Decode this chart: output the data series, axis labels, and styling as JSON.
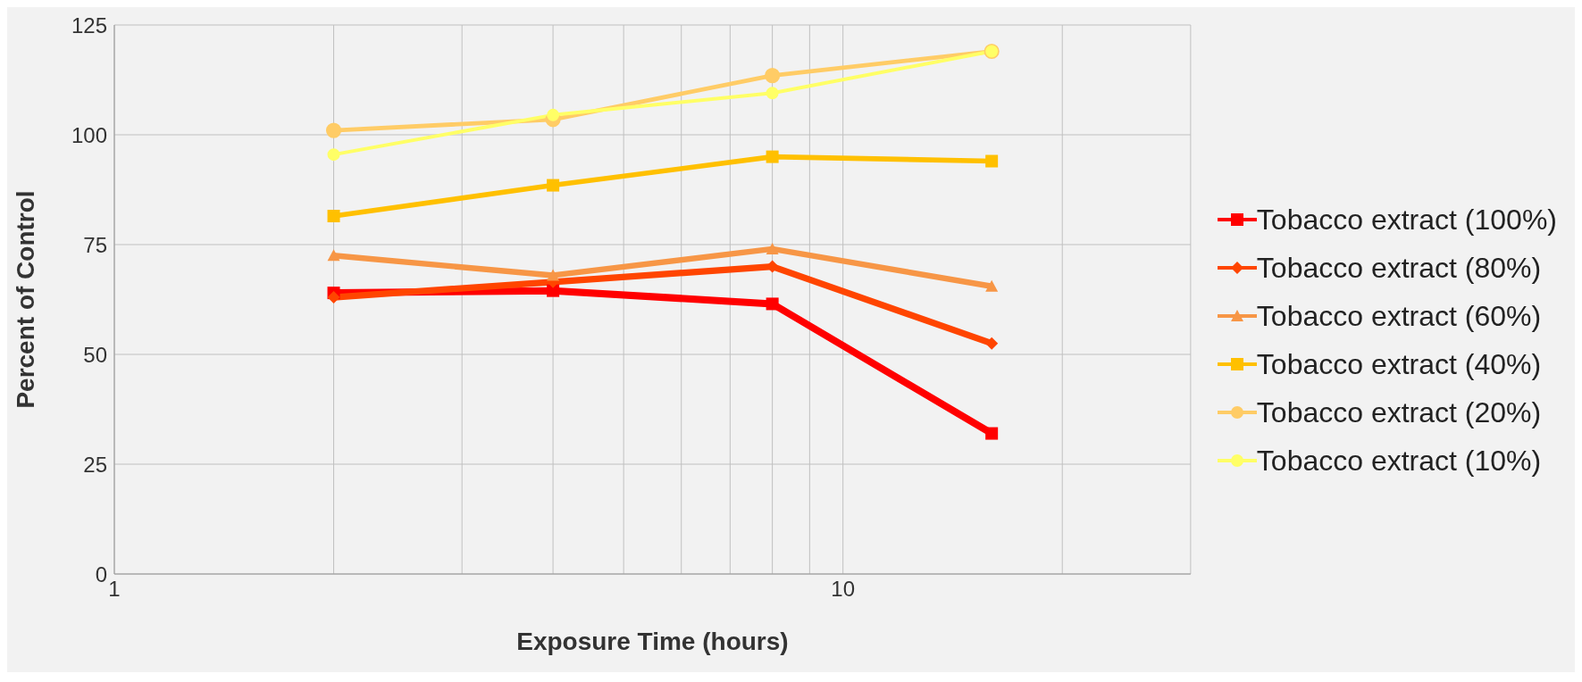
{
  "chart_data": {
    "type": "line",
    "xlabel": "Exposure Time (hours)",
    "ylabel": "Percent of Control",
    "log": "x",
    "xlim": [
      1,
      30
    ],
    "xticks": [
      1,
      {
        "value": 2,
        "label": null
      },
      {
        "value": 3,
        "label": null
      },
      {
        "value": 4,
        "label": null
      },
      {
        "value": 5,
        "label": null
      },
      {
        "value": 6,
        "label": null
      },
      {
        "value": 7,
        "label": null
      },
      {
        "value": 8,
        "label": null
      },
      {
        "value": 9,
        "label": null
      },
      10,
      {
        "value": 20,
        "label": null
      },
      {
        "value": 30,
        "label": null
      }
    ],
    "ylim": [
      0,
      125
    ],
    "yticks": [
      0,
      25,
      50,
      75,
      100,
      125
    ],
    "grid": true,
    "legend": "right",
    "line_style": "solid",
    "x": [
      2,
      4,
      8,
      16
    ],
    "series": [
      {
        "name": "Tobacco extract (100%)",
        "color": "#ff0000",
        "marker": "square",
        "values": [
          64,
          64.5,
          61.5,
          32
        ]
      },
      {
        "name": "Tobacco extract (80%)",
        "color": "#ff4500",
        "marker": "diamond",
        "values": [
          63,
          66.5,
          70,
          52.5
        ]
      },
      {
        "name": "Tobacco extract (60%)",
        "color": "#f79646",
        "marker": "triangle",
        "values": [
          72.5,
          68,
          74,
          65.5
        ]
      },
      {
        "name": "Tobacco extract (40%)",
        "color": "#ffc000",
        "marker": "square",
        "values": [
          81.5,
          88.5,
          95,
          94
        ]
      },
      {
        "name": "Tobacco extract (20%)",
        "color": "#ffcc66",
        "marker": "circle",
        "values": [
          101,
          103.5,
          113.5,
          119
        ]
      },
      {
        "name": "Tobacco extract (10%)",
        "color": "#ffff66",
        "marker": "circle",
        "values": [
          95.5,
          104.5,
          109.5,
          119
        ]
      }
    ]
  }
}
